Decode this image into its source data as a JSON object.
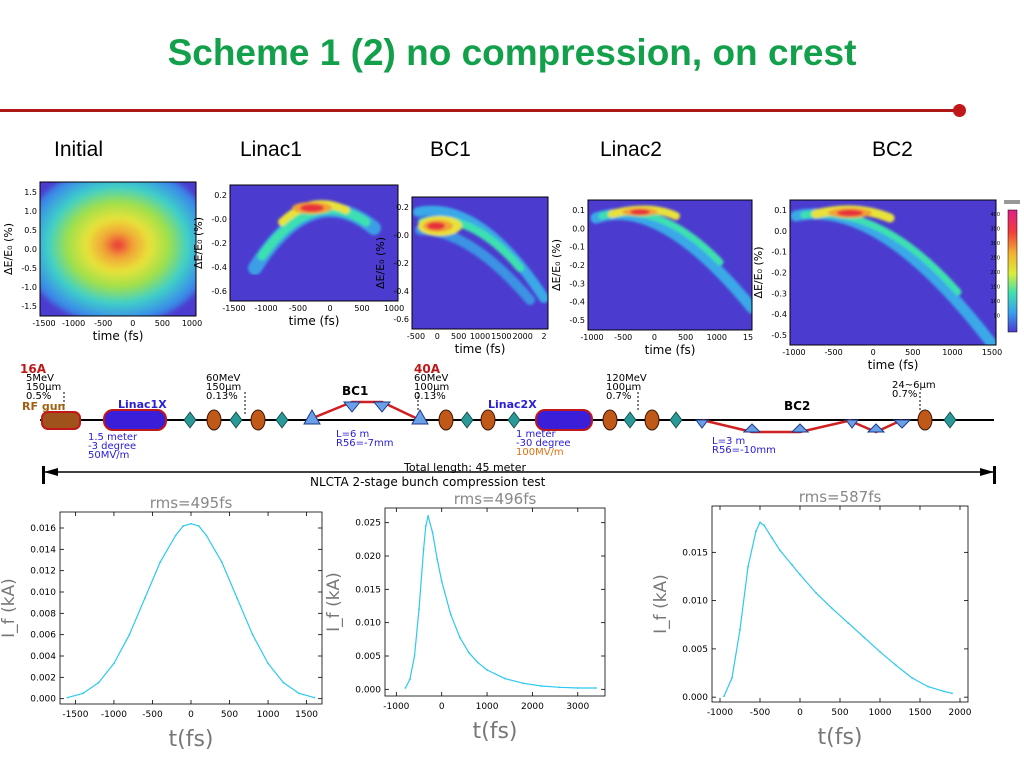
{
  "slide": {
    "title": "Scheme 1 (2) no compression, on crest",
    "stages": [
      "Initial",
      "Linac1",
      "BC1",
      "Linac2",
      "BC2"
    ]
  },
  "colors": {
    "title": "#12a04a",
    "rule": "#b01818",
    "profile_line": "#2ec8f0",
    "phase_bg": "#4b3ccf"
  },
  "phase_space": {
    "x_label": "time  (fs)",
    "y_label": "ΔE/E₀ (%)",
    "colorbar_ticks": [
      "400",
      "350",
      "300",
      "250",
      "200",
      "150",
      "100",
      "50"
    ],
    "panels": [
      {
        "x_ticks": [
          "-1500",
          "-1000",
          "-500",
          "0",
          "500",
          "1000"
        ],
        "y_ticks": [
          "1.5",
          "1.0",
          "0.5",
          "0.0",
          "-0.5",
          "-1.0",
          "-1.5"
        ]
      },
      {
        "x_ticks": [
          "-1500",
          "-1000",
          "-500",
          "0",
          "500",
          "1000"
        ],
        "y_ticks": [
          "0.2",
          "-0.0",
          "-0.2",
          "-0.4",
          "-0.6"
        ]
      },
      {
        "x_ticks": [
          "-500",
          "0",
          "500",
          "1000",
          "1500",
          "2000",
          "2"
        ],
        "y_ticks": [
          "0.2",
          "-0.0",
          "-0.2",
          "-0.4",
          "-0.6"
        ]
      },
      {
        "x_ticks": [
          "-1000",
          "-500",
          "0",
          "500",
          "1000",
          "15"
        ],
        "y_ticks": [
          "0.1",
          "0.0",
          "-0.1",
          "-0.2",
          "-0.3",
          "-0.4",
          "-0.5"
        ]
      },
      {
        "x_ticks": [
          "-1000",
          "-500",
          "0",
          "500",
          "1000",
          "1500"
        ],
        "y_ticks": [
          "0.1",
          "0.0",
          "-0.1",
          "-0.2",
          "-0.3",
          "-0.4",
          "-0.5"
        ]
      }
    ]
  },
  "beamline": {
    "labels": {
      "gun_current": "16A",
      "gun_params": [
        "5MeV",
        "150µm",
        "0.5%"
      ],
      "gun": "RF gun",
      "linac1": "Linac1X",
      "linac1_params": [
        "1.5 meter",
        "-3 degree",
        "50MV/m"
      ],
      "after_linac1": [
        "60MeV",
        "150µm",
        "0.13%"
      ],
      "bc1": "BC1",
      "bc1_params": [
        "L=6 m",
        "R56=-7mm"
      ],
      "after_bc1_current": "40A",
      "after_bc1": [
        "60MeV",
        "100µm",
        "0.13%"
      ],
      "linac2": "Linac2X",
      "linac2_params": [
        "1 meter",
        "-30 degree",
        "100MV/m"
      ],
      "after_linac2": [
        "120MeV",
        "100µm",
        "0.7%"
      ],
      "bc2": "BC2",
      "bc2_params": [
        "L=3 m",
        "R56=-10mm"
      ],
      "after_bc2": [
        "24~6µm",
        "0.7%"
      ],
      "total_length": "Total length: 45 meter",
      "caption": "NLCTA 2-stage bunch compression test"
    }
  },
  "chart_data": [
    {
      "type": "line",
      "title": "rms=495fs",
      "xlabel": "t(fs)",
      "ylabel": "I_f (kA)",
      "x_ticks": [
        "-1500",
        "-1000",
        "-500",
        "0",
        "500",
        "1000",
        "1500"
      ],
      "y_ticks": [
        "0.016",
        "0.014",
        "0.012",
        "0.010",
        "0.008",
        "0.006",
        "0.004",
        "0.002",
        "0.000"
      ],
      "xlim": [
        -1700,
        1700
      ],
      "ylim": [
        -0.0005,
        0.0175
      ],
      "x": [
        -1600,
        -1400,
        -1200,
        -1000,
        -800,
        -600,
        -400,
        -200,
        -100,
        0,
        100,
        200,
        400,
        600,
        800,
        1000,
        1200,
        1400,
        1600
      ],
      "values": [
        0.0001,
        0.0005,
        0.0015,
        0.0033,
        0.006,
        0.0094,
        0.0128,
        0.0153,
        0.0162,
        0.0164,
        0.0162,
        0.0153,
        0.0128,
        0.0094,
        0.006,
        0.0033,
        0.0015,
        0.0005,
        0.0001
      ]
    },
    {
      "type": "line",
      "title": "rms=496fs",
      "xlabel": "t(fs)",
      "ylabel": "I_f (kA)",
      "x_ticks": [
        "-1000",
        "0",
        "1000",
        "2000",
        "3000"
      ],
      "y_ticks": [
        "0.025",
        "0.020",
        "0.015",
        "0.010",
        "0.005",
        "0.000"
      ],
      "xlim": [
        -1250,
        3600
      ],
      "ylim": [
        -0.001,
        0.0272
      ],
      "x": [
        -800,
        -700,
        -600,
        -500,
        -400,
        -350,
        -300,
        -200,
        -100,
        0,
        200,
        400,
        600,
        800,
        1000,
        1400,
        1800,
        2200,
        2600,
        3000,
        3400
      ],
      "values": [
        0.0002,
        0.0015,
        0.005,
        0.012,
        0.021,
        0.0245,
        0.026,
        0.0235,
        0.0195,
        0.0162,
        0.0112,
        0.0078,
        0.0055,
        0.004,
        0.0029,
        0.0016,
        0.0009,
        0.0005,
        0.0003,
        0.0002,
        0.0002
      ]
    },
    {
      "type": "line",
      "title": "rms=587fs",
      "xlabel": "t(fs)",
      "ylabel": "I_f (kA)",
      "x_ticks": [
        "-1000",
        "-500",
        "0",
        "500",
        "1000",
        "1500",
        "2000"
      ],
      "y_ticks": [
        "0.015",
        "0.010",
        "0.005",
        "0.000"
      ],
      "xlim": [
        -1100,
        2100
      ],
      "ylim": [
        -0.0005,
        0.0198
      ],
      "x": [
        -950,
        -850,
        -750,
        -650,
        -550,
        -500,
        -450,
        -350,
        -250,
        -100,
        0,
        200,
        400,
        600,
        800,
        1000,
        1200,
        1400,
        1600,
        1800,
        1900
      ],
      "values": [
        0.0001,
        0.002,
        0.007,
        0.0135,
        0.0172,
        0.0181,
        0.0178,
        0.0165,
        0.0152,
        0.0137,
        0.0127,
        0.0108,
        0.0092,
        0.0077,
        0.0062,
        0.0047,
        0.0033,
        0.002,
        0.0011,
        0.0006,
        0.0004
      ]
    }
  ]
}
